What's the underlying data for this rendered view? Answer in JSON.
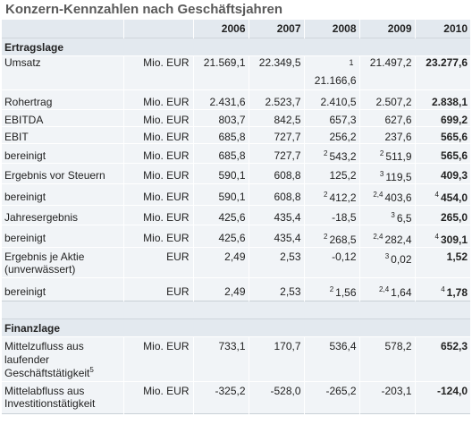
{
  "title": "Konzern-Kennzahlen nach Geschäftsjahren",
  "years": [
    "2006",
    "2007",
    "2008",
    "2009",
    "2010"
  ],
  "sections": {
    "ertragslage": "Ertragslage",
    "finanzlage": "Finanzlage"
  },
  "rows": {
    "umsatz": {
      "label": "Umsatz",
      "unit": "Mio. EUR",
      "v2006": "21.569,1",
      "v2007": "22.349,5",
      "fn2008": "1",
      "v2008": "21.166,6",
      "v2009": "21.497,2",
      "v2010": "23.277,6"
    },
    "rohertrag": {
      "label": "Rohertrag",
      "unit": "Mio. EUR",
      "v2006": "2.431,6",
      "v2007": "2.523,7",
      "v2008": "2.410,5",
      "v2009": "2.507,2",
      "v2010": "2.838,1"
    },
    "ebitda": {
      "label": "EBITDA",
      "unit": "Mio. EUR",
      "v2006": "803,7",
      "v2007": "842,5",
      "v2008": "657,3",
      "v2009": "627,6",
      "v2010": "699,2"
    },
    "ebit": {
      "label": "EBIT",
      "unit": "Mio. EUR",
      "v2006": "685,8",
      "v2007": "727,7",
      "v2008": "256,2",
      "v2009": "237,6",
      "v2010": "565,6"
    },
    "ebit_ber": {
      "label": "bereinigt",
      "unit": "Mio. EUR",
      "v2006": "685,8",
      "v2007": "727,7",
      "fn2008": "2",
      "v2008": "543,2",
      "fn2009": "2",
      "v2009": "511,9",
      "v2010": "565,6"
    },
    "evs": {
      "label": "Ergebnis vor Steuern",
      "unit": "Mio. EUR",
      "v2006": "590,1",
      "v2007": "608,8",
      "v2008": "125,2",
      "fn2009": "3",
      "v2009": "119,5",
      "v2010": "409,3"
    },
    "evs_ber": {
      "label": "bereinigt",
      "unit": "Mio. EUR",
      "v2006": "590,1",
      "v2007": "608,8",
      "fn2008": "2",
      "v2008": "412,2",
      "fn2009": "2,4",
      "v2009": "403,6",
      "fn2010": "4",
      "v2010": "454,0"
    },
    "jahres": {
      "label": "Jahresergebnis",
      "unit": "Mio. EUR",
      "v2006": "425,6",
      "v2007": "435,4",
      "v2008": "-18,5",
      "fn2009": "3",
      "v2009": "6,5",
      "v2010": "265,0"
    },
    "jahres_ber": {
      "label": "bereinigt",
      "unit": "Mio. EUR",
      "v2006": "425,6",
      "v2007": "435,4",
      "fn2008": "2",
      "v2008": "268,5",
      "fn2009": "2,4",
      "v2009": "282,4",
      "fn2010": "4",
      "v2010": "309,1"
    },
    "eja": {
      "label": "Ergebnis je Aktie (unverwässert)",
      "unit": "EUR",
      "v2006": "2,49",
      "v2007": "2,53",
      "v2008": "-0,12",
      "fn2009": "3",
      "v2009": "0,02",
      "v2010": "1,52"
    },
    "eja_ber": {
      "label": "bereinigt",
      "unit": "EUR",
      "v2006": "2,49",
      "v2007": "2,53",
      "fn2008": "2",
      "v2008": "1,56",
      "fn2009": "2,4",
      "v2009": "1,64",
      "fn2010": "4",
      "v2010": "1,78"
    },
    "mzf": {
      "label": "Mittelzufluss aus laufender Geschäftstätigkeit",
      "fn_label": "5",
      "unit": "Mio. EUR",
      "v2006": "733,1",
      "v2007": "170,7",
      "v2008": "536,4",
      "v2009": "578,2",
      "v2010": "652,3"
    },
    "maf": {
      "label": "Mittelabfluss aus Investitionstätigkeit",
      "unit": "Mio. EUR",
      "v2006": "-325,2",
      "v2007": "-528,0",
      "v2008": "-265,2",
      "v2009": "-203,1",
      "v2010": "-124,0"
    }
  }
}
